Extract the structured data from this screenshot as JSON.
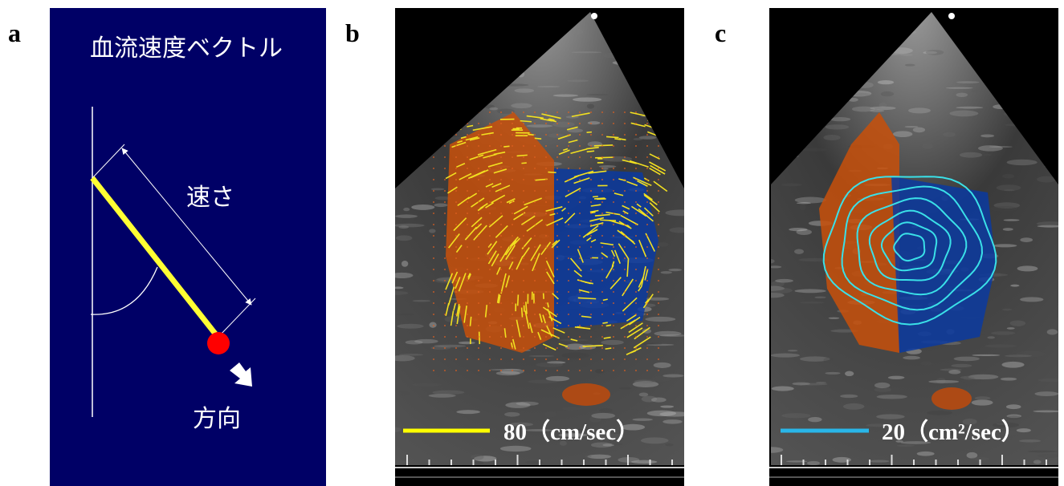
{
  "panels": [
    {
      "label": "a",
      "title": "血流速度ベクトル",
      "speed_label": "速さ",
      "direction_label": "方向"
    },
    {
      "label": "b",
      "scale_label": "80（cm/sec）"
    },
    {
      "label": "c",
      "scale_label": "20（cm²/sec）"
    }
  ]
}
